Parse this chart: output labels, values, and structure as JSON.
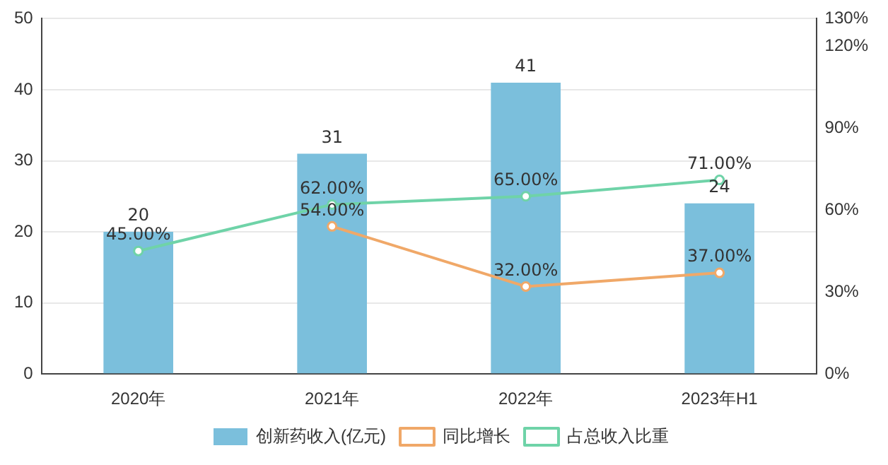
{
  "chart_data": {
    "type": "bar",
    "categories": [
      "2020年",
      "2021年",
      "2022年",
      "2023年H1"
    ],
    "series": [
      {
        "name": "创新药收入(亿元)",
        "type": "bar",
        "color": "#7bbfdc",
        "values": [
          20,
          31,
          41,
          24
        ],
        "value_labels": [
          "20",
          "31",
          "41",
          "24"
        ]
      },
      {
        "name": "同比增长",
        "type": "line",
        "axis": "y2",
        "color": "#f0a868",
        "values": [
          null,
          54,
          32,
          37
        ],
        "value_labels": [
          null,
          "54.00%",
          "32.00%",
          "37.00%"
        ]
      },
      {
        "name": "占总收入比重",
        "type": "line",
        "axis": "y2",
        "color": "#6fd3a8",
        "values": [
          45,
          62,
          65,
          71
        ],
        "value_labels": [
          "45.00%",
          "62.00%",
          "65.00%",
          "71.00%"
        ]
      }
    ],
    "ylim": [
      0,
      50
    ],
    "yticks": [
      0,
      10,
      20,
      30,
      40,
      50
    ],
    "y2lim": [
      0,
      130
    ],
    "y2ticks": [
      {
        "value": 0,
        "label": "0%"
      },
      {
        "value": 30,
        "label": "30%"
      },
      {
        "value": 60,
        "label": "60%"
      },
      {
        "value": 90,
        "label": "90%"
      },
      {
        "value": 120,
        "label": "120%"
      },
      {
        "value": 130,
        "label": "130%"
      }
    ],
    "grid": "y",
    "legend": "bottom",
    "marker": "circle",
    "line_style": "solid"
  }
}
